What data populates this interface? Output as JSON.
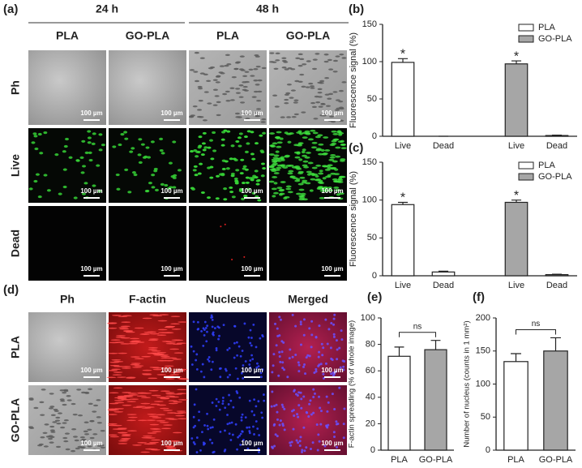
{
  "panel_a": {
    "label": "(a)",
    "times": [
      "24 h",
      "48 h"
    ],
    "columns": [
      "PLA",
      "GO-PLA",
      "PLA",
      "GO-PLA"
    ],
    "rows": [
      "Ph",
      "Live",
      "Dead"
    ],
    "scale_bars": [
      "100 µm",
      "100 µm",
      "100 µm",
      "100 µm",
      "100 µm",
      "100 µm",
      "100 µm",
      "100 µm",
      "100 µm",
      "100 µm",
      "100 µm",
      "100 µm"
    ]
  },
  "panel_d": {
    "label": "(d)",
    "columns": [
      "Ph",
      "F-actin",
      "Nucleus",
      "Merged"
    ],
    "rows": [
      "PLA",
      "GO-PLA"
    ],
    "scale_bars": [
      "100 µm",
      "100 µm",
      "100 µm",
      "100 µm",
      "100 µm",
      "100 µm",
      "100 µm",
      "100 µm"
    ]
  },
  "chart_data": [
    {
      "type": "bar",
      "label": "(b)",
      "ylabel": "Fluorescence signal (%)",
      "categories": [
        "Live",
        "Dead",
        "Live",
        "Dead"
      ],
      "series": [
        {
          "name": "PLA",
          "color": "#ffffff",
          "values": [
            99,
            0,
            null,
            null
          ],
          "errors": [
            5,
            0,
            null,
            null
          ],
          "annotations": [
            "*",
            null,
            null,
            null
          ]
        },
        {
          "name": "GO-PLA",
          "color": "#a6a6a6",
          "values": [
            null,
            null,
            97,
            1
          ],
          "errors": [
            null,
            null,
            4,
            0.5
          ],
          "annotations": [
            null,
            null,
            "*",
            null
          ]
        }
      ],
      "ylim": [
        0,
        150
      ],
      "yticks": [
        0,
        50,
        100,
        150
      ],
      "legend": "top-right"
    },
    {
      "type": "bar",
      "label": "(c)",
      "ylabel": "Fluorescence signal (%)",
      "categories": [
        "Live",
        "Dead",
        "Live",
        "Dead"
      ],
      "series": [
        {
          "name": "PLA",
          "color": "#ffffff",
          "values": [
            94,
            5,
            null,
            null
          ],
          "errors": [
            3,
            1,
            null,
            null
          ],
          "annotations": [
            "*",
            null,
            null,
            null
          ]
        },
        {
          "name": "GO-PLA",
          "color": "#a6a6a6",
          "values": [
            null,
            null,
            97,
            1.5
          ],
          "errors": [
            null,
            null,
            3,
            0.5
          ],
          "annotations": [
            null,
            null,
            "*",
            null
          ]
        }
      ],
      "ylim": [
        0,
        150
      ],
      "yticks": [
        0,
        50,
        100,
        150
      ],
      "legend": "top-right"
    },
    {
      "type": "bar",
      "label": "(e)",
      "ylabel": "F-actin spreading (% of whole image)",
      "categories": [
        "PLA",
        "GO-PLA"
      ],
      "values": [
        71,
        76
      ],
      "errors": [
        7,
        7
      ],
      "colors": [
        "#ffffff",
        "#a6a6a6"
      ],
      "annotation": "ns",
      "ylim": [
        0,
        100
      ],
      "yticks": [
        0,
        20,
        40,
        60,
        80,
        100
      ]
    },
    {
      "type": "bar",
      "label": "(f)",
      "ylabel": "Number of nucleus (counts in 1 mm²)",
      "categories": [
        "PLA",
        "GO-PLA"
      ],
      "values": [
        134,
        150
      ],
      "errors": [
        12,
        20
      ],
      "colors": [
        "#ffffff",
        "#a6a6a6"
      ],
      "annotation": "ns",
      "ylim": [
        0,
        200
      ],
      "yticks": [
        0,
        50,
        100,
        150,
        200
      ]
    }
  ]
}
